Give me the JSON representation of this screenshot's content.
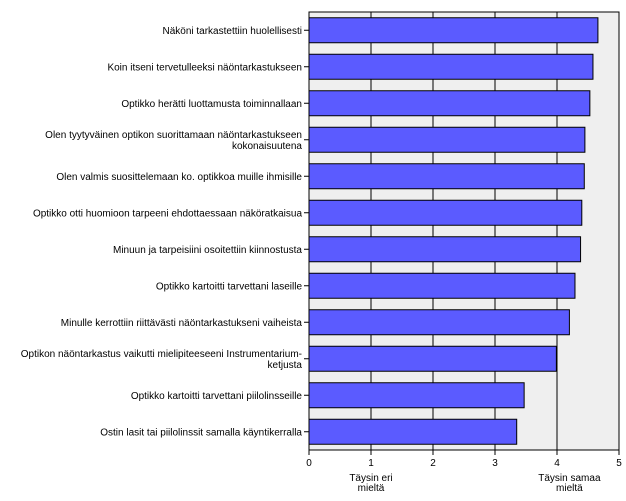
{
  "chart_data": {
    "type": "bar",
    "orientation": "horizontal",
    "categories": [
      [
        "Näköni tarkastettiin huolellisesti"
      ],
      [
        "Koin itseni tervetulleeksi näöntarkastukseen"
      ],
      [
        "Optikko herätti luottamusta toiminnallaan"
      ],
      [
        "Olen tyytyväinen optikon suorittamaan näöntarkastukseen",
        "kokonaisuutena"
      ],
      [
        "Olen valmis suosittelemaan ko. optikkoa muille ihmisille"
      ],
      [
        "Optikko otti huomioon tarpeeni ehdottaessaan näköratkaisua"
      ],
      [
        "Minuun ja tarpeisiini osoitettiin kiinnostusta"
      ],
      [
        "Optikko kartoitti tarvettani laseille"
      ],
      [
        "Minulle kerrottiin riittävästi näöntarkastukseni vaiheista"
      ],
      [
        "Optikon näöntarkastus vaikutti mielipiteeseeni Instrumentarium-",
        "ketjusta"
      ],
      [
        "Optikko kartoitti tarvettani piilolinsseille"
      ],
      [
        "Ostin lasit tai piilolinssit samalla käyntikerralla"
      ]
    ],
    "values": [
      4.66,
      4.58,
      4.53,
      4.45,
      4.44,
      4.4,
      4.38,
      4.29,
      4.2,
      3.99,
      3.47,
      3.35
    ],
    "xlim": [
      0,
      5
    ],
    "xticks": [
      "0",
      "1",
      "2",
      "3",
      "4",
      "5"
    ],
    "x_end_labels": {
      "left": [
        "Täysin eri",
        "mieltä"
      ],
      "right": [
        "Täysin samaa",
        "mieltä"
      ]
    },
    "grid": true,
    "bar_color": "#5b5bff",
    "plot_background": "#efefef"
  }
}
